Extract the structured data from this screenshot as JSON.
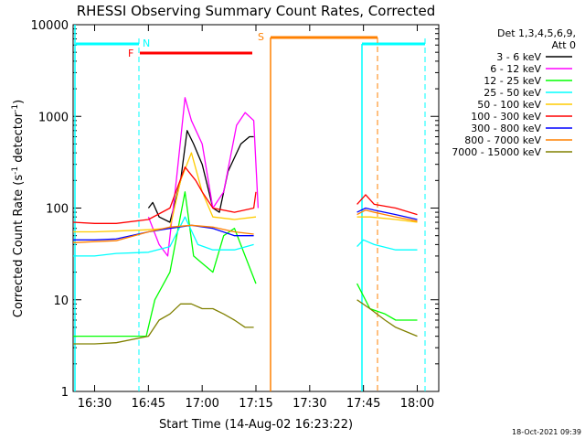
{
  "chart_data": {
    "type": "line",
    "title": "RHESSI Observing Summary Count Rates, Corrected",
    "xlabel": "Start Time (14-Aug-02 16:23:22)",
    "ylabel_main": "Corrected Count Rate (s",
    "ylabel_sup1": "-1",
    "ylabel_mid": " detector",
    "ylabel_sup2": "-1",
    "ylabel_end": ")",
    "y_scale": "log",
    "ylim": [
      1,
      10000
    ],
    "xlim_minutes": [
      16.4,
      18.1
    ],
    "x_tick_labels": [
      "16:30",
      "16:45",
      "17:00",
      "17:15",
      "17:30",
      "17:45",
      "18:00"
    ],
    "x_tick_values": [
      16.5,
      16.75,
      17.0,
      17.25,
      17.5,
      17.75,
      18.0
    ],
    "y_tick_labels": [
      "1",
      "10",
      "100",
      "1000",
      "10000"
    ],
    "y_tick_values": [
      1,
      10,
      100,
      1000,
      10000
    ],
    "legend_header": [
      "Det 1,3,4,5,6,9,",
      "Att 0"
    ],
    "legend_placement": "right",
    "footer_stamp": "18-Oct-2021 09:39",
    "markers": [
      {
        "label": "N",
        "color": "#00ffff"
      },
      {
        "label": "F",
        "color": "#ff0000"
      },
      {
        "label": "S",
        "color": "#ff8000"
      }
    ],
    "series": [
      {
        "name": "3 - 6 keV",
        "color": "#000000",
        "points": [
          [
            16.75,
            100
          ],
          [
            16.77,
            115
          ],
          [
            16.8,
            80
          ],
          [
            16.85,
            70
          ],
          [
            16.9,
            200
          ],
          [
            16.93,
            700
          ],
          [
            16.96,
            500
          ],
          [
            17.0,
            300
          ],
          [
            17.05,
            100
          ],
          [
            17.08,
            90
          ],
          [
            17.12,
            250
          ],
          [
            17.18,
            500
          ],
          [
            17.22,
            600
          ],
          [
            17.24,
            600
          ]
        ]
      },
      {
        "name": "6 - 12 keV",
        "color": "#ff00ff",
        "points": [
          [
            16.75,
            80
          ],
          [
            16.8,
            40
          ],
          [
            16.84,
            30
          ],
          [
            16.88,
            200
          ],
          [
            16.92,
            1600
          ],
          [
            16.95,
            900
          ],
          [
            17.0,
            500
          ],
          [
            17.05,
            100
          ],
          [
            17.1,
            150
          ],
          [
            17.16,
            800
          ],
          [
            17.2,
            1100
          ],
          [
            17.24,
            900
          ],
          [
            17.26,
            100
          ]
        ]
      },
      {
        "name": "12 - 25 keV",
        "color": "#00ff00",
        "points": [
          [
            16.4,
            4
          ],
          [
            16.5,
            4
          ],
          [
            16.6,
            4
          ],
          [
            16.74,
            4
          ],
          [
            16.78,
            10
          ],
          [
            16.85,
            20
          ],
          [
            16.92,
            150
          ],
          [
            16.96,
            30
          ],
          [
            17.0,
            25
          ],
          [
            17.05,
            20
          ],
          [
            17.1,
            50
          ],
          [
            17.15,
            60
          ],
          [
            17.2,
            30
          ],
          [
            17.25,
            15
          ],
          [
            17.72,
            15
          ],
          [
            17.78,
            8
          ],
          [
            17.85,
            7
          ],
          [
            17.9,
            6
          ],
          [
            18.0,
            6
          ]
        ]
      },
      {
        "name": "25 - 50 keV",
        "color": "#00ffff",
        "points": [
          [
            16.4,
            30
          ],
          [
            16.5,
            30
          ],
          [
            16.6,
            32
          ],
          [
            16.75,
            33
          ],
          [
            16.85,
            38
          ],
          [
            16.92,
            80
          ],
          [
            16.98,
            40
          ],
          [
            17.05,
            35
          ],
          [
            17.15,
            35
          ],
          [
            17.24,
            40
          ],
          [
            17.72,
            38
          ],
          [
            17.75,
            45
          ],
          [
            17.8,
            40
          ],
          [
            17.9,
            35
          ],
          [
            18.0,
            35
          ]
        ]
      },
      {
        "name": "50 - 100 keV",
        "color": "#ffcc00",
        "points": [
          [
            16.4,
            55
          ],
          [
            16.5,
            55
          ],
          [
            16.6,
            56
          ],
          [
            16.75,
            58
          ],
          [
            16.85,
            60
          ],
          [
            16.9,
            200
          ],
          [
            16.95,
            400
          ],
          [
            17.0,
            150
          ],
          [
            17.05,
            80
          ],
          [
            17.15,
            75
          ],
          [
            17.25,
            80
          ],
          [
            17.72,
            80
          ],
          [
            17.78,
            80
          ],
          [
            17.9,
            75
          ],
          [
            18.0,
            70
          ]
        ]
      },
      {
        "name": "100 - 300 keV",
        "color": "#ff0000",
        "points": [
          [
            16.4,
            70
          ],
          [
            16.5,
            68
          ],
          [
            16.6,
            68
          ],
          [
            16.75,
            75
          ],
          [
            16.85,
            100
          ],
          [
            16.92,
            280
          ],
          [
            16.97,
            200
          ],
          [
            17.0,
            150
          ],
          [
            17.05,
            100
          ],
          [
            17.15,
            90
          ],
          [
            17.24,
            100
          ],
          [
            17.25,
            150
          ],
          [
            17.72,
            110
          ],
          [
            17.76,
            140
          ],
          [
            17.8,
            110
          ],
          [
            17.9,
            100
          ],
          [
            18.0,
            85
          ]
        ]
      },
      {
        "name": "300 - 800 keV",
        "color": "#0000ff",
        "points": [
          [
            16.4,
            45
          ],
          [
            16.5,
            45
          ],
          [
            16.6,
            46
          ],
          [
            16.75,
            55
          ],
          [
            16.85,
            60
          ],
          [
            16.95,
            65
          ],
          [
            17.05,
            60
          ],
          [
            17.15,
            50
          ],
          [
            17.24,
            50
          ],
          [
            17.72,
            90
          ],
          [
            17.76,
            100
          ],
          [
            17.8,
            95
          ],
          [
            17.9,
            85
          ],
          [
            18.0,
            75
          ]
        ]
      },
      {
        "name": "800 - 7000 keV",
        "color": "#ff8000",
        "points": [
          [
            16.4,
            42
          ],
          [
            16.5,
            43
          ],
          [
            16.6,
            44
          ],
          [
            16.75,
            55
          ],
          [
            16.85,
            62
          ],
          [
            16.95,
            65
          ],
          [
            17.05,
            62
          ],
          [
            17.15,
            55
          ],
          [
            17.24,
            52
          ],
          [
            17.72,
            85
          ],
          [
            17.76,
            95
          ],
          [
            17.8,
            90
          ],
          [
            17.9,
            80
          ],
          [
            18.0,
            72
          ]
        ]
      },
      {
        "name": "7000 - 15000 keV",
        "color": "#808000",
        "points": [
          [
            16.4,
            3.3
          ],
          [
            16.5,
            3.3
          ],
          [
            16.6,
            3.4
          ],
          [
            16.75,
            4
          ],
          [
            16.8,
            6
          ],
          [
            16.85,
            7
          ],
          [
            16.9,
            9
          ],
          [
            16.95,
            9
          ],
          [
            17.0,
            8
          ],
          [
            17.05,
            8
          ],
          [
            17.1,
            7
          ],
          [
            17.15,
            6
          ],
          [
            17.2,
            5
          ],
          [
            17.24,
            5
          ],
          [
            17.72,
            10
          ],
          [
            17.78,
            8
          ],
          [
            17.85,
            6
          ],
          [
            17.9,
            5
          ],
          [
            18.0,
            4
          ]
        ]
      }
    ]
  }
}
